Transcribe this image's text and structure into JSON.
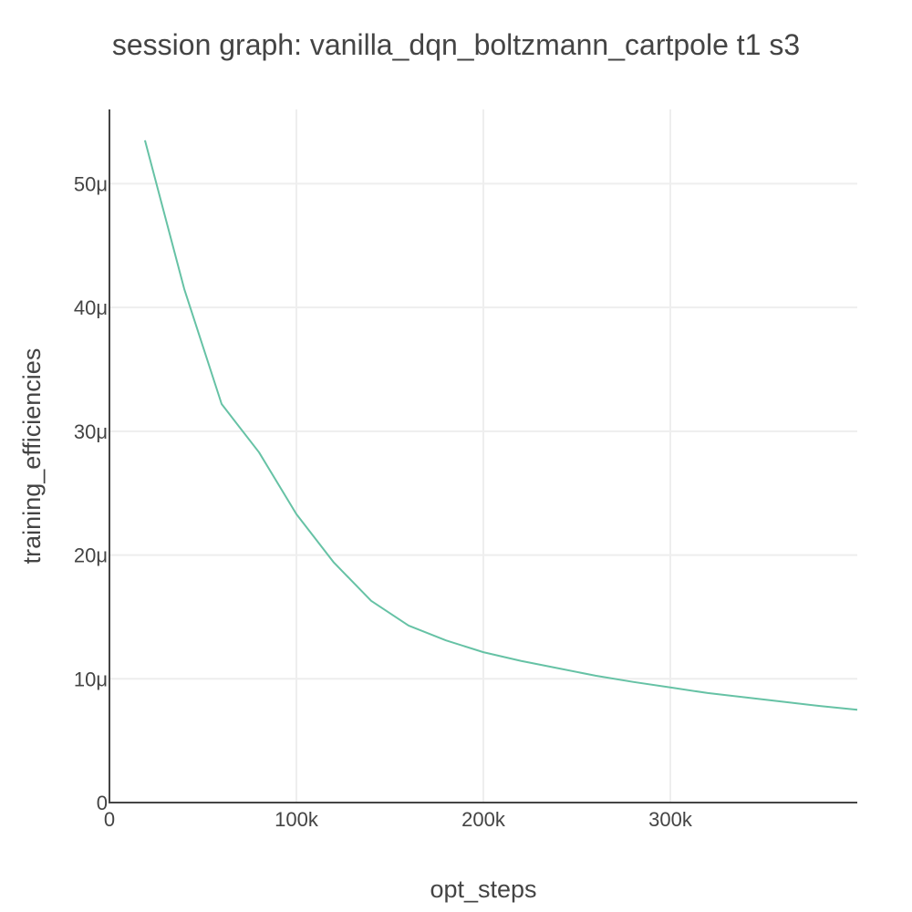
{
  "chart_data": {
    "type": "line",
    "title": "session graph: vanilla_dqn_boltzmann_cartpole t1 s3",
    "xlabel": "opt_steps",
    "ylabel": "training_efficiencies",
    "xlim": [
      0,
      400000
    ],
    "ylim": [
      0,
      56
    ],
    "x_ticks": [
      0,
      100000,
      200000,
      300000
    ],
    "x_tick_labels": [
      "0",
      "100k",
      "200k",
      "300k"
    ],
    "y_ticks": [
      0,
      10,
      20,
      30,
      40,
      50
    ],
    "y_tick_labels": [
      "0",
      "10μ",
      "20μ",
      "30μ",
      "40μ",
      "50μ"
    ],
    "grid": true,
    "series": [
      {
        "name": "training_efficiencies",
        "color": "#66c2a5",
        "x": [
          19000,
          40000,
          60000,
          80000,
          100000,
          120000,
          140000,
          160000,
          180000,
          200000,
          220000,
          240000,
          260000,
          280000,
          300000,
          320000,
          340000,
          360000,
          380000,
          400000
        ],
        "y": [
          53.5,
          41.5,
          32.2,
          28.3,
          23.3,
          19.4,
          16.3,
          14.3,
          13.1,
          12.15,
          11.45,
          10.85,
          10.25,
          9.75,
          9.3,
          8.85,
          8.5,
          8.15,
          7.8,
          7.5
        ]
      }
    ]
  },
  "colors": {
    "grid": "#eeeeee",
    "axis": "#444444",
    "text": "#444444"
  }
}
